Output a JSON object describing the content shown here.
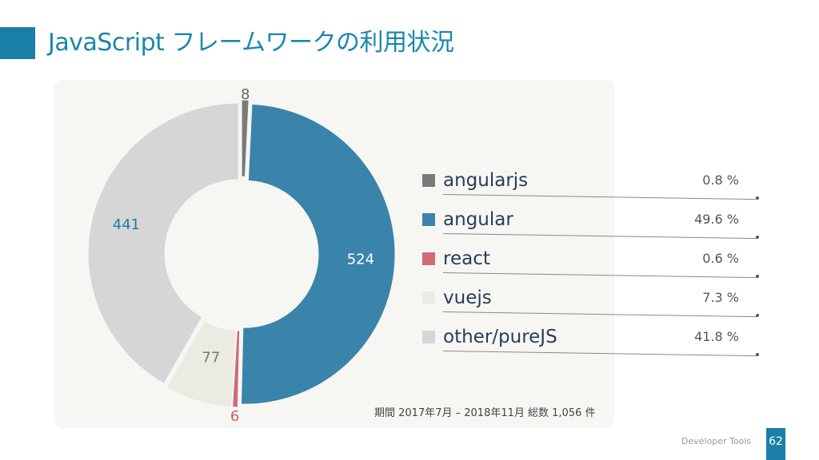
{
  "slide": {
    "title": "JavaScript フレームワークの利用状況",
    "period_note": "期間 2017年7月 – 2018年11月 総数 1,056 件",
    "footer": "Developer Tools",
    "page_number": "62"
  },
  "chart_data": {
    "type": "pie",
    "style": "donut",
    "categories": [
      "angularjs",
      "angular",
      "react",
      "vuejs",
      "other/pureJS"
    ],
    "values": [
      8,
      524,
      6,
      77,
      441
    ],
    "percent_labels": [
      "0.8 %",
      "49.6 %",
      "0.6 %",
      "7.3 %",
      "41.8 %"
    ],
    "colors": [
      "#7a7a7a",
      "#3a84ab",
      "#cf6b78",
      "#ebebe3",
      "#d6d6d6"
    ],
    "value_label_colors": [
      "#666666",
      "#ffffff",
      "#cf5c6e",
      "#777777",
      "#1a7fa8"
    ],
    "legend_position": "right"
  }
}
